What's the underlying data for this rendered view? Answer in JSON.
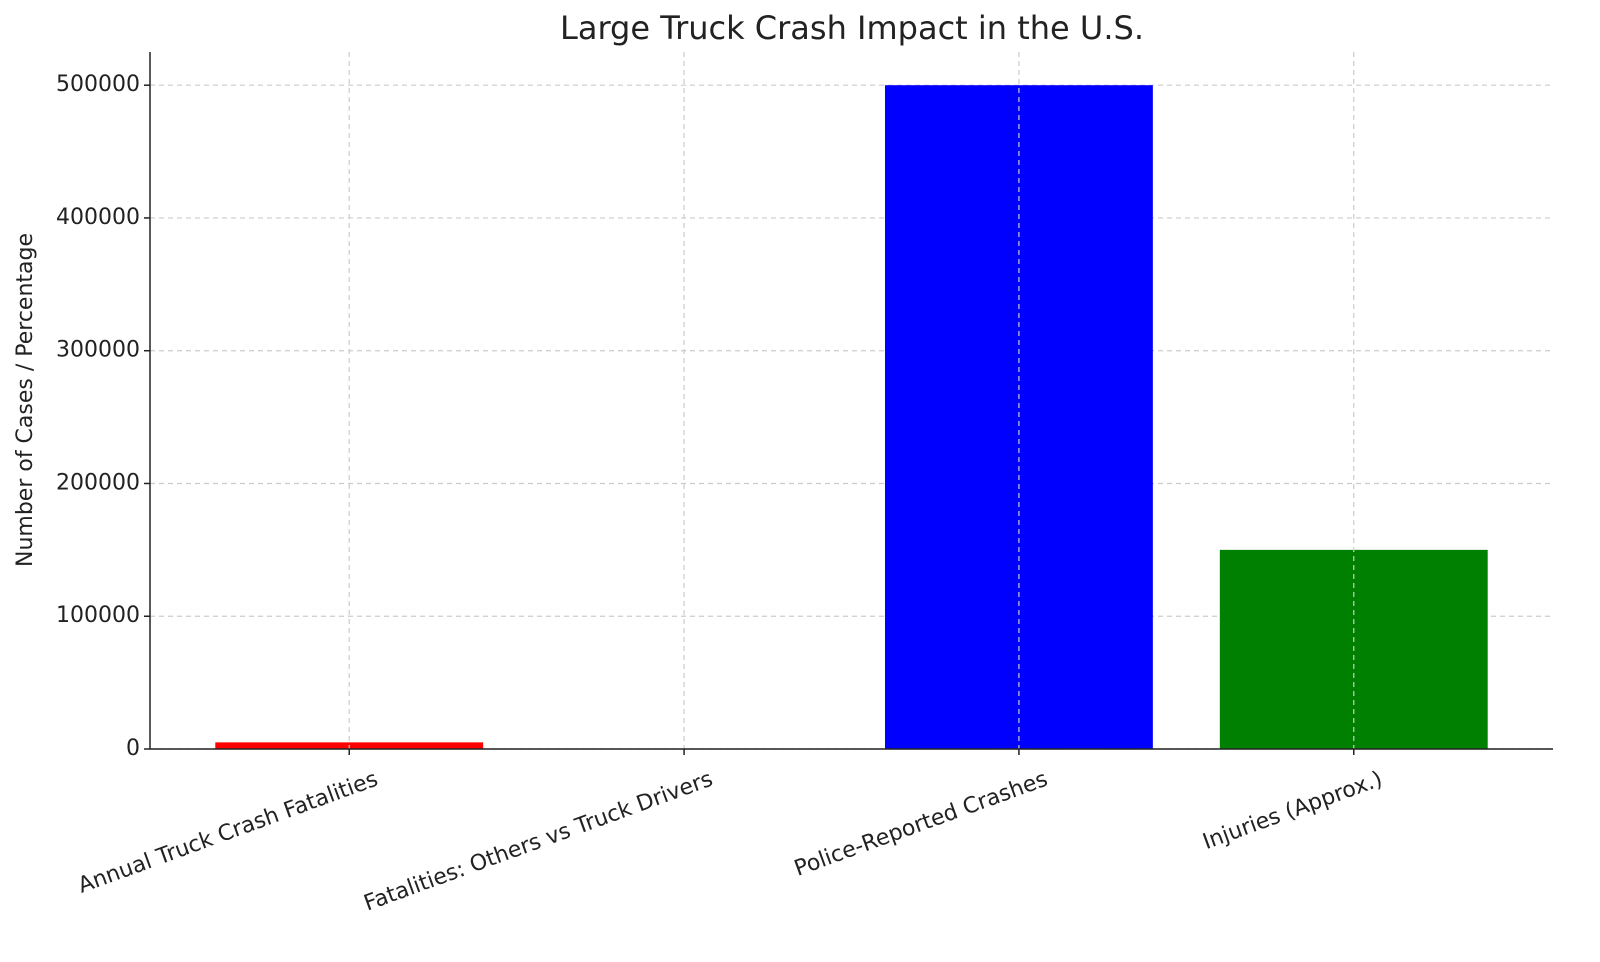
{
  "chart_data": {
    "type": "bar",
    "title": "Large Truck Crash Impact in the U.S.",
    "y_label": "Number of Cases / Percentage",
    "categories": [
      "Annual Truck Crash Fatalities",
      "Fatalities: Others vs Truck Drivers",
      "Police-Reported Crashes",
      "Injuries (Approx.)"
    ],
    "values": [
      5000,
      68,
      500000,
      150000
    ],
    "colors": [
      "red",
      "orange",
      "blue",
      "green"
    ],
    "ylim": [
      0,
      525000
    ],
    "yticks": [
      0,
      100000,
      200000,
      300000,
      400000,
      500000
    ],
    "grid": true
  }
}
